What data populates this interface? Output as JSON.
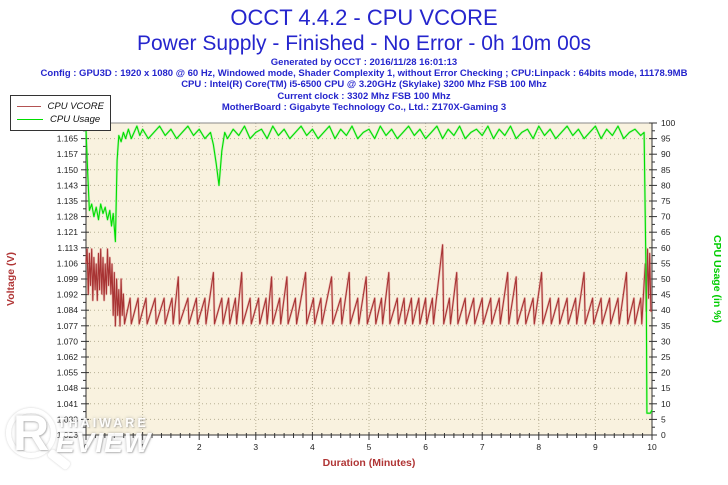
{
  "header": {
    "title": "OCCT 4.4.2 - CPU VCORE",
    "subtitle": "Power Supply - Finished - No Error - 0h 10m 00s",
    "generated": "Generated by OCCT : 2016/11/28 16:01:13",
    "config": "Config : GPU3D : 1920 x 1080 @ 60 Hz, Windowed mode, Shader Complexity 1, without Error Checking ; CPU:Linpack : 64bits mode, 11178.9MB",
    "cpu": "CPU : Intel(R) Core(TM) i5-6500 CPU @ 3.20GHz (Skylake) 3200 Mhz FSB 100 Mhz",
    "clock": "Current clock : 3302 Mhz FSB 100 Mhz",
    "motherboard": "MotherBoard : Gigabyte Technology Co., Ltd.: Z170X-Gaming 3"
  },
  "legend": {
    "items": [
      {
        "label": "CPU VCORE",
        "color": "#b35252"
      },
      {
        "label": "CPU Usage",
        "color": "#00dd00"
      }
    ]
  },
  "watermark": {
    "brand_letter": "R",
    "line1": "THAIWARE",
    "line2": "EVIEW"
  },
  "colors": {
    "accent_blue": "#2525cd",
    "brick_red": "#b03535",
    "usage_green": "#00cc00",
    "line_red": "#a83434",
    "line_red_halo": "rgba(220,130,130,0.45)",
    "line_green": "#00dd00",
    "line_green_halo": "rgba(130,240,130,0.45)",
    "plot_bg": "#f9f2df",
    "grid": "#b9b196",
    "axis": "#333333",
    "border": "#8a8a8a",
    "tick_label": "#222222"
  },
  "chart_data": {
    "type": "line",
    "title": "OCCT 4.4.2 - CPU VCORE",
    "xlabel": "Duration (Minutes)",
    "ylabel_left": "Voltage (V)",
    "ylabel_right": "CPU Usage (in %)",
    "grid": true,
    "legend_position": "top-left",
    "x_range": [
      0,
      10
    ],
    "x_ticks": [
      "0",
      "1",
      "2",
      "3",
      "4",
      "5",
      "6",
      "7",
      "8",
      "9",
      "10"
    ],
    "x_minor_per_major": 5,
    "y_left_range": [
      1.026,
      1.172
    ],
    "y_left_ticks": [
      "1.172",
      "1.165",
      "1.157",
      "1.150",
      "1.143",
      "1.135",
      "1.128",
      "1.121",
      "1.113",
      "1.106",
      "1.099",
      "1.092",
      "1.084",
      "1.077",
      "1.070",
      "1.062",
      "1.055",
      "1.048",
      "1.041",
      "1.033",
      "1.026"
    ],
    "y_right_range": [
      0,
      100
    ],
    "y_right_ticks": [
      "100",
      "95",
      "90",
      "85",
      "80",
      "75",
      "70",
      "65",
      "60",
      "55",
      "50",
      "45",
      "40",
      "35",
      "30",
      "25",
      "20",
      "15",
      "10",
      "5",
      "0"
    ],
    "series": [
      {
        "name": "CPU VCORE",
        "axis": "left",
        "color": "#a83434",
        "halo": "rgba(220,130,130,0.45)",
        "points": [
          [
            0,
            1.106
          ],
          [
            0.02,
            1.113
          ],
          [
            0.04,
            1.092
          ],
          [
            0.06,
            1.111
          ],
          [
            0.08,
            1.096
          ],
          [
            0.1,
            1.113
          ],
          [
            0.12,
            1.089
          ],
          [
            0.14,
            1.109
          ],
          [
            0.16,
            1.094
          ],
          [
            0.18,
            1.106
          ],
          [
            0.2,
            1.089
          ],
          [
            0.22,
            1.111
          ],
          [
            0.24,
            1.094
          ],
          [
            0.26,
            1.113
          ],
          [
            0.28,
            1.092
          ],
          [
            0.3,
            1.109
          ],
          [
            0.32,
            1.089
          ],
          [
            0.34,
            1.106
          ],
          [
            0.36,
            1.092
          ],
          [
            0.38,
            1.113
          ],
          [
            0.4,
            1.096
          ],
          [
            0.42,
            1.109
          ],
          [
            0.44,
            1.092
          ],
          [
            0.46,
            1.106
          ],
          [
            0.48,
            1.082
          ],
          [
            0.5,
            1.102
          ],
          [
            0.52,
            1.077
          ],
          [
            0.54,
            1.099
          ],
          [
            0.56,
            1.082
          ],
          [
            0.58,
            1.094
          ],
          [
            0.6,
            1.077
          ],
          [
            0.62,
            1.099
          ],
          [
            0.64,
            1.082
          ],
          [
            0.66,
            1.092
          ],
          [
            0.68,
            1.078
          ],
          [
            0.78,
            1.09
          ],
          [
            0.8,
            1.078
          ],
          [
            0.92,
            1.09
          ],
          [
            0.94,
            1.078
          ],
          [
            1.06,
            1.09
          ],
          [
            1.08,
            1.078
          ],
          [
            1.22,
            1.09
          ],
          [
            1.24,
            1.078
          ],
          [
            1.38,
            1.09
          ],
          [
            1.4,
            1.078
          ],
          [
            1.52,
            1.09
          ],
          [
            1.54,
            1.078
          ],
          [
            1.63,
            1.1
          ],
          [
            1.65,
            1.078
          ],
          [
            1.8,
            1.09
          ],
          [
            1.82,
            1.078
          ],
          [
            1.95,
            1.09
          ],
          [
            1.97,
            1.078
          ],
          [
            2.1,
            1.09
          ],
          [
            2.12,
            1.078
          ],
          [
            2.25,
            1.102
          ],
          [
            2.27,
            1.078
          ],
          [
            2.4,
            1.09
          ],
          [
            2.42,
            1.078
          ],
          [
            2.52,
            1.09
          ],
          [
            2.54,
            1.078
          ],
          [
            2.64,
            1.09
          ],
          [
            2.66,
            1.078
          ],
          [
            2.75,
            1.102
          ],
          [
            2.77,
            1.078
          ],
          [
            2.9,
            1.09
          ],
          [
            2.92,
            1.078
          ],
          [
            3.05,
            1.09
          ],
          [
            3.07,
            1.078
          ],
          [
            3.18,
            1.09
          ],
          [
            3.2,
            1.078
          ],
          [
            3.28,
            1.1
          ],
          [
            3.3,
            1.078
          ],
          [
            3.42,
            1.09
          ],
          [
            3.44,
            1.078
          ],
          [
            3.55,
            1.1
          ],
          [
            3.57,
            1.078
          ],
          [
            3.7,
            1.09
          ],
          [
            3.72,
            1.078
          ],
          [
            3.88,
            1.102
          ],
          [
            3.9,
            1.078
          ],
          [
            4.02,
            1.09
          ],
          [
            4.04,
            1.078
          ],
          [
            4.15,
            1.09
          ],
          [
            4.17,
            1.078
          ],
          [
            4.34,
            1.1
          ],
          [
            4.36,
            1.078
          ],
          [
            4.5,
            1.09
          ],
          [
            4.52,
            1.078
          ],
          [
            4.65,
            1.102
          ],
          [
            4.67,
            1.078
          ],
          [
            4.8,
            1.09
          ],
          [
            4.82,
            1.078
          ],
          [
            4.95,
            1.1
          ],
          [
            4.97,
            1.078
          ],
          [
            5.1,
            1.09
          ],
          [
            5.12,
            1.078
          ],
          [
            5.22,
            1.09
          ],
          [
            5.24,
            1.078
          ],
          [
            5.35,
            1.102
          ],
          [
            5.37,
            1.078
          ],
          [
            5.5,
            1.09
          ],
          [
            5.52,
            1.078
          ],
          [
            5.62,
            1.09
          ],
          [
            5.64,
            1.078
          ],
          [
            5.75,
            1.09
          ],
          [
            5.77,
            1.078
          ],
          [
            5.88,
            1.09
          ],
          [
            5.9,
            1.078
          ],
          [
            6,
            1.09
          ],
          [
            6.02,
            1.078
          ],
          [
            6.12,
            1.09
          ],
          [
            6.14,
            1.078
          ],
          [
            6.3,
            1.115
          ],
          [
            6.32,
            1.078
          ],
          [
            6.42,
            1.09
          ],
          [
            6.44,
            1.078
          ],
          [
            6.55,
            1.102
          ],
          [
            6.57,
            1.078
          ],
          [
            6.7,
            1.09
          ],
          [
            6.72,
            1.078
          ],
          [
            6.85,
            1.09
          ],
          [
            6.87,
            1.078
          ],
          [
            7,
            1.09
          ],
          [
            7.02,
            1.078
          ],
          [
            7.15,
            1.09
          ],
          [
            7.17,
            1.078
          ],
          [
            7.3,
            1.09
          ],
          [
            7.32,
            1.078
          ],
          [
            7.45,
            1.102
          ],
          [
            7.47,
            1.078
          ],
          [
            7.6,
            1.1
          ],
          [
            7.62,
            1.078
          ],
          [
            7.75,
            1.09
          ],
          [
            7.77,
            1.078
          ],
          [
            7.9,
            1.09
          ],
          [
            7.92,
            1.078
          ],
          [
            8.05,
            1.102
          ],
          [
            8.07,
            1.078
          ],
          [
            8.2,
            1.09
          ],
          [
            8.22,
            1.078
          ],
          [
            8.35,
            1.09
          ],
          [
            8.37,
            1.078
          ],
          [
            8.5,
            1.09
          ],
          [
            8.52,
            1.078
          ],
          [
            8.65,
            1.09
          ],
          [
            8.67,
            1.078
          ],
          [
            8.8,
            1.102
          ],
          [
            8.82,
            1.078
          ],
          [
            8.95,
            1.09
          ],
          [
            8.97,
            1.078
          ],
          [
            9.1,
            1.09
          ],
          [
            9.12,
            1.078
          ],
          [
            9.25,
            1.09
          ],
          [
            9.27,
            1.078
          ],
          [
            9.4,
            1.09
          ],
          [
            9.42,
            1.078
          ],
          [
            9.55,
            1.102
          ],
          [
            9.57,
            1.078
          ],
          [
            9.68,
            1.09
          ],
          [
            9.7,
            1.078
          ],
          [
            9.8,
            1.09
          ],
          [
            9.82,
            1.078
          ],
          [
            9.88,
            1.106
          ],
          [
            9.9,
            1.084
          ],
          [
            9.92,
            1.113
          ],
          [
            9.94,
            1.09
          ],
          [
            9.96,
            1.111
          ],
          [
            9.98,
            1.084
          ],
          [
            10,
            1.084
          ]
        ]
      },
      {
        "name": "CPU Usage",
        "axis": "right",
        "color": "#00dd00",
        "halo": "rgba(130,240,130,0.45)",
        "points": [
          [
            0,
            98
          ],
          [
            0.03,
            84
          ],
          [
            0.06,
            72
          ],
          [
            0.1,
            74
          ],
          [
            0.14,
            70
          ],
          [
            0.18,
            73
          ],
          [
            0.22,
            69
          ],
          [
            0.26,
            74
          ],
          [
            0.3,
            71
          ],
          [
            0.34,
            73
          ],
          [
            0.38,
            69
          ],
          [
            0.42,
            72
          ],
          [
            0.45,
            67
          ],
          [
            0.48,
            71
          ],
          [
            0.52,
            62
          ],
          [
            0.55,
            88
          ],
          [
            0.58,
            96
          ],
          [
            0.62,
            94
          ],
          [
            0.66,
            97
          ],
          [
            0.7,
            95
          ],
          [
            0.75,
            98
          ],
          [
            0.8,
            95
          ],
          [
            0.85,
            97
          ],
          [
            0.9,
            99
          ],
          [
            0.95,
            96
          ],
          [
            1,
            98
          ],
          [
            1.1,
            95
          ],
          [
            1.2,
            97
          ],
          [
            1.3,
            99
          ],
          [
            1.4,
            96
          ],
          [
            1.5,
            98
          ],
          [
            1.6,
            95
          ],
          [
            1.7,
            97
          ],
          [
            1.8,
            99
          ],
          [
            1.9,
            96
          ],
          [
            2,
            98
          ],
          [
            2.1,
            95
          ],
          [
            2.2,
            97
          ],
          [
            2.25,
            93
          ],
          [
            2.3,
            87
          ],
          [
            2.35,
            80
          ],
          [
            2.4,
            91
          ],
          [
            2.45,
            97
          ],
          [
            2.5,
            95
          ],
          [
            2.6,
            98
          ],
          [
            2.7,
            96
          ],
          [
            2.8,
            99
          ],
          [
            2.9,
            95
          ],
          [
            3,
            97
          ],
          [
            3.1,
            98
          ],
          [
            3.2,
            95
          ],
          [
            3.3,
            99
          ],
          [
            3.4,
            96
          ],
          [
            3.5,
            98
          ],
          [
            3.6,
            95
          ],
          [
            3.7,
            97
          ],
          [
            3.8,
            99
          ],
          [
            3.9,
            96
          ],
          [
            4,
            98
          ],
          [
            4.1,
            95
          ],
          [
            4.2,
            97
          ],
          [
            4.3,
            99
          ],
          [
            4.4,
            95
          ],
          [
            4.5,
            98
          ],
          [
            4.6,
            96
          ],
          [
            4.7,
            99
          ],
          [
            4.8,
            95
          ],
          [
            4.9,
            97
          ],
          [
            5,
            98
          ],
          [
            5.1,
            95
          ],
          [
            5.2,
            99
          ],
          [
            5.3,
            96
          ],
          [
            5.4,
            98
          ],
          [
            5.5,
            95
          ],
          [
            5.6,
            97
          ],
          [
            5.7,
            99
          ],
          [
            5.8,
            96
          ],
          [
            5.9,
            98
          ],
          [
            6,
            95
          ],
          [
            6.1,
            97
          ],
          [
            6.2,
            99
          ],
          [
            6.3,
            95
          ],
          [
            6.4,
            98
          ],
          [
            6.5,
            96
          ],
          [
            6.6,
            99
          ],
          [
            6.7,
            95
          ],
          [
            6.8,
            97
          ],
          [
            6.9,
            98
          ],
          [
            7,
            96
          ],
          [
            7.1,
            99
          ],
          [
            7.2,
            95
          ],
          [
            7.3,
            98
          ],
          [
            7.4,
            96
          ],
          [
            7.5,
            99
          ],
          [
            7.6,
            95
          ],
          [
            7.7,
            97
          ],
          [
            7.8,
            98
          ],
          [
            7.9,
            95
          ],
          [
            8,
            99
          ],
          [
            8.1,
            96
          ],
          [
            8.2,
            98
          ],
          [
            8.3,
            95
          ],
          [
            8.4,
            97
          ],
          [
            8.5,
            99
          ],
          [
            8.6,
            96
          ],
          [
            8.7,
            98
          ],
          [
            8.8,
            95
          ],
          [
            8.9,
            97
          ],
          [
            9,
            99
          ],
          [
            9.1,
            95
          ],
          [
            9.2,
            98
          ],
          [
            9.3,
            96
          ],
          [
            9.4,
            99
          ],
          [
            9.5,
            95
          ],
          [
            9.6,
            97
          ],
          [
            9.7,
            98
          ],
          [
            9.8,
            96
          ],
          [
            9.86,
            97
          ],
          [
            9.9,
            45
          ],
          [
            9.91,
            7
          ],
          [
            9.97,
            7
          ],
          [
            10,
            8
          ]
        ]
      }
    ]
  }
}
